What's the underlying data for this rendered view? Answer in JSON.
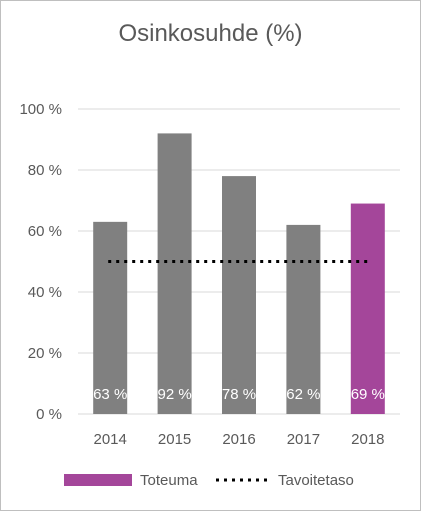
{
  "chart_data": {
    "type": "bar",
    "title": "Osinkosuhde (%)",
    "categories": [
      "2014",
      "2015",
      "2016",
      "2017",
      "2018"
    ],
    "series": [
      {
        "name": "Toteuma",
        "values": [
          63,
          92,
          78,
          62,
          69
        ],
        "data_labels": [
          "63 %",
          "92 %",
          "78 %",
          "62 %",
          "69 %"
        ]
      },
      {
        "name": "Tavoitetaso",
        "type": "line",
        "style": "dotted",
        "values": [
          50,
          50,
          50,
          50,
          50
        ]
      }
    ],
    "ylim": [
      0,
      100
    ],
    "y_ticks": [
      0,
      20,
      40,
      60,
      80,
      100
    ],
    "y_tick_labels": [
      "0 %",
      "20 %",
      "40 %",
      "60 %",
      "80 %",
      "100 %"
    ],
    "grid": true,
    "legend": "bottom",
    "colors": {
      "bar_default": "#808080",
      "bar_highlight": "#a4469a",
      "target_line": "#000000",
      "grid": "#d9d9d9",
      "text": "#595959"
    },
    "highlight_category": "2018"
  }
}
